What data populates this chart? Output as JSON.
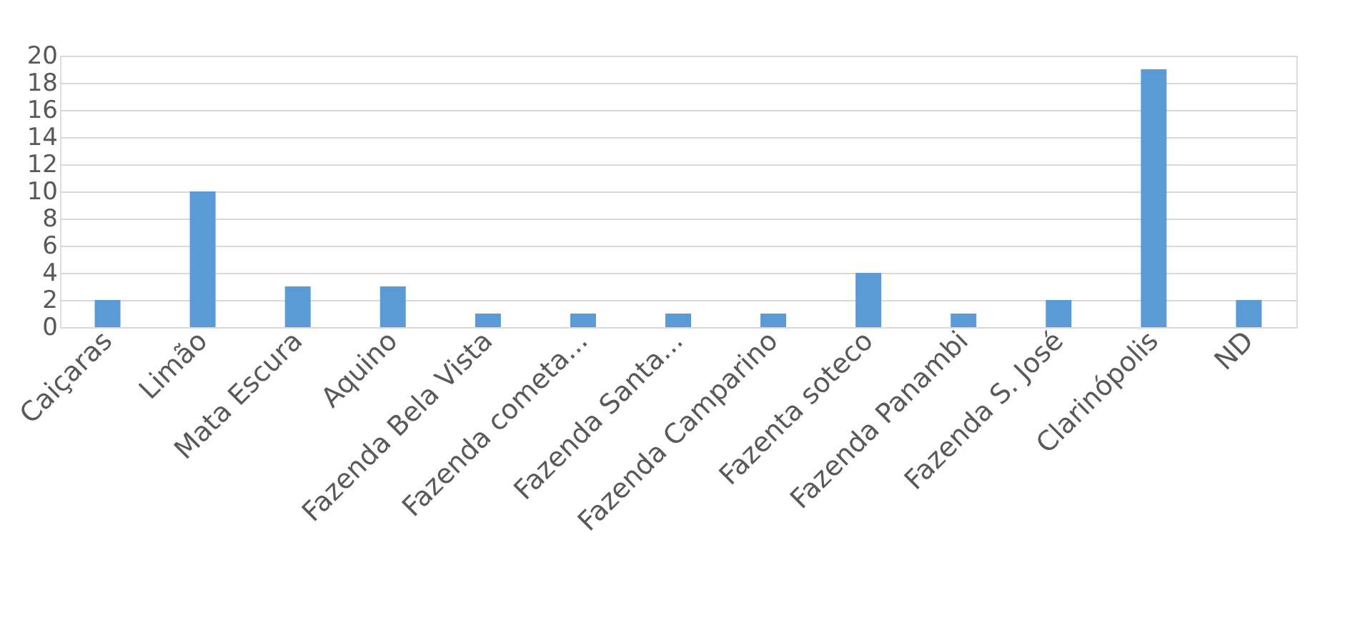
{
  "chart_data": {
    "type": "bar",
    "categories": [
      "Caiçaras",
      "Limão",
      "Mata Escura",
      "Aquino",
      "Fazenda Bela Vista",
      "Fazenda cometa...",
      "Fazenda Santa...",
      "Fazenda Camparino",
      "Fazenta soteco",
      "Fazenda Panambi",
      "Fazenda S. José",
      "Clarinópolis",
      "ND"
    ],
    "values": [
      2,
      10,
      3,
      3,
      1,
      1,
      1,
      1,
      4,
      1,
      2,
      19,
      2
    ],
    "color": "#5b9bd5",
    "ylim": [
      0,
      20
    ],
    "yticks": [
      0,
      2,
      4,
      6,
      8,
      10,
      12,
      14,
      16,
      18,
      20
    ],
    "grid": "y"
  }
}
